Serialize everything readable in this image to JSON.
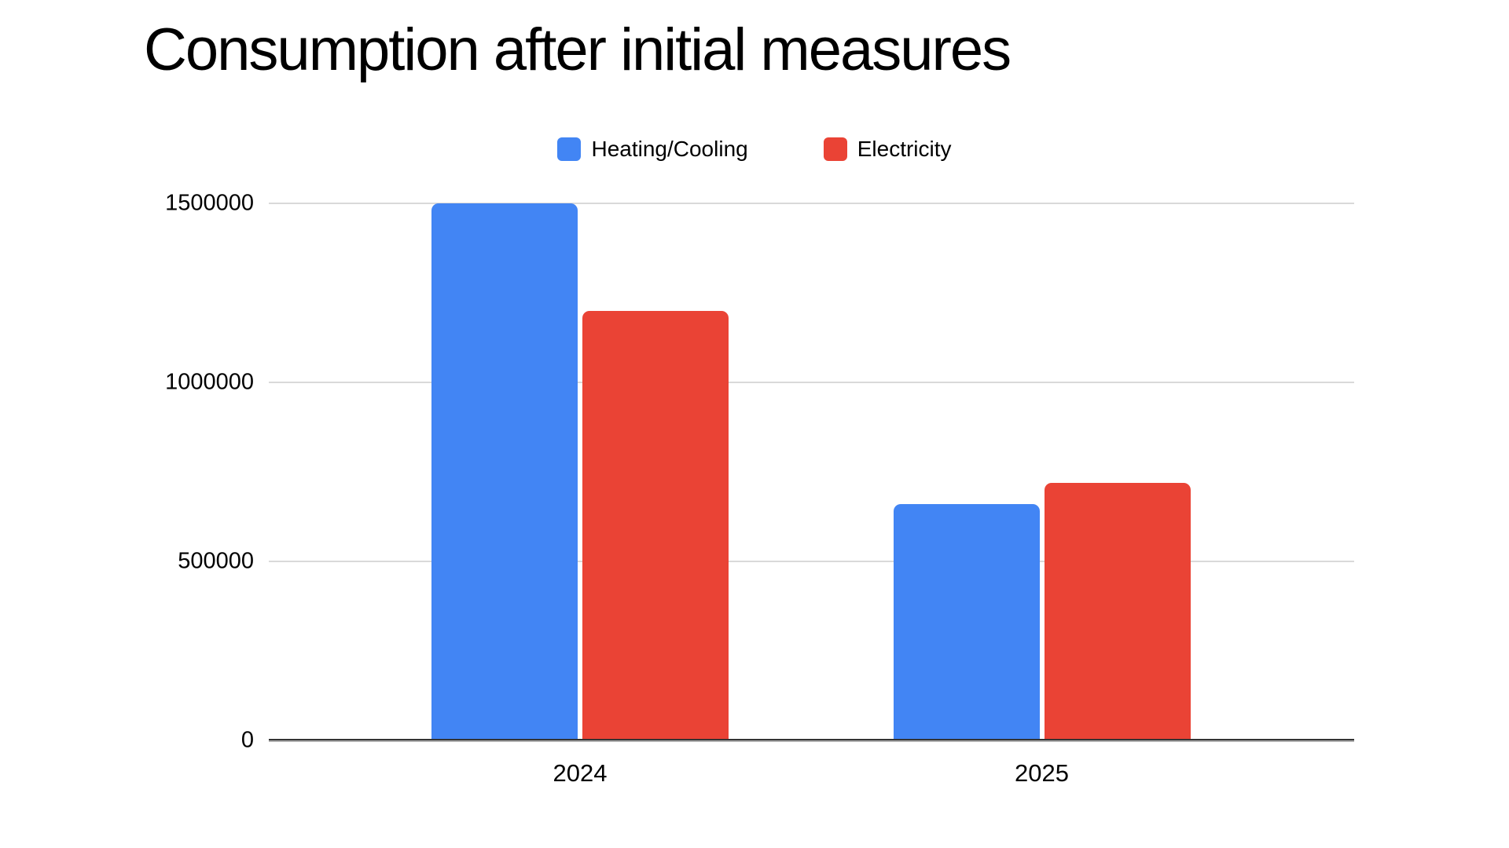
{
  "title": "Consumption after initial measures",
  "chart_data": {
    "type": "bar",
    "title": "Consumption after initial measures",
    "categories": [
      "2024",
      "2025"
    ],
    "series": [
      {
        "name": "Heating/Cooling",
        "color": "#4285F4",
        "values": [
          1500000,
          660000
        ]
      },
      {
        "name": "Electricity",
        "color": "#EA4335",
        "values": [
          1200000,
          720000
        ]
      }
    ],
    "xlabel": "",
    "ylabel": "",
    "ylim": [
      0,
      1500000
    ],
    "yticks": [
      0,
      500000,
      1000000,
      1500000
    ],
    "grid": true,
    "legend_position": "top"
  },
  "colors": {
    "background": "#FFFFFF",
    "gridline": "#D9D9D9",
    "baseline": "#333333",
    "text": "#000000"
  }
}
